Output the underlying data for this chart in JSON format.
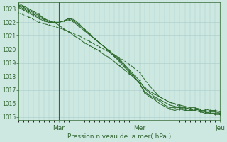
{
  "background_color": "#cce8e0",
  "grid_color": "#aacccc",
  "line_color": "#2d6a2d",
  "ylabel_text": "Pression niveau de la mer( hPa )",
  "ytick_min": 1015,
  "ytick_max": 1023,
  "x_min": 0,
  "x_max": 120,
  "y_min": 1014.8,
  "y_max": 1023.5,
  "day_lines": [
    24,
    72,
    120
  ],
  "xtick_positions": [
    24,
    72,
    120
  ],
  "xtick_labels": [
    "Mar",
    "Mer",
    "Jeu"
  ],
  "series": [
    {
      "x": [
        0,
        3,
        6,
        9,
        12,
        15,
        18,
        21,
        24,
        27,
        30,
        33,
        36,
        39,
        42,
        45,
        48,
        51,
        54,
        57,
        60,
        63,
        66,
        69,
        72,
        75,
        78,
        81,
        84,
        87,
        90,
        93,
        96,
        99,
        102,
        105,
        108,
        111,
        114,
        117,
        120
      ],
      "y": [
        1023.1,
        1022.9,
        1022.7,
        1022.5,
        1022.3,
        1022.1,
        1022.0,
        1022.0,
        1021.8,
        1021.5,
        1021.3,
        1021.0,
        1020.8,
        1020.5,
        1020.3,
        1020.1,
        1019.9,
        1019.6,
        1019.4,
        1019.1,
        1018.8,
        1018.5,
        1018.2,
        1017.9,
        1017.6,
        1017.2,
        1016.9,
        1016.7,
        1016.5,
        1016.3,
        1016.1,
        1016.0,
        1015.9,
        1015.8,
        1015.7,
        1015.7,
        1015.6,
        1015.6,
        1015.5,
        1015.5,
        1015.4
      ],
      "style": "-",
      "marker": "+"
    },
    {
      "x": [
        0,
        3,
        6,
        9,
        12,
        15,
        18,
        21,
        24,
        27,
        30,
        33,
        36,
        39,
        42,
        45,
        48,
        51,
        54,
        57,
        60,
        63,
        66,
        69,
        72,
        75,
        78,
        81,
        84,
        87,
        90,
        93,
        96,
        99,
        102,
        105,
        108,
        111,
        114,
        117,
        120
      ],
      "y": [
        1023.2,
        1023.0,
        1022.8,
        1022.6,
        1022.4,
        1022.2,
        1022.0,
        1022.0,
        1022.0,
        1022.1,
        1022.2,
        1022.0,
        1021.7,
        1021.4,
        1021.1,
        1020.8,
        1020.5,
        1020.2,
        1019.9,
        1019.6,
        1019.3,
        1018.9,
        1018.5,
        1018.1,
        1017.7,
        1017.1,
        1016.8,
        1016.5,
        1016.3,
        1016.1,
        1015.9,
        1015.8,
        1015.7,
        1015.7,
        1015.6,
        1015.6,
        1015.5,
        1015.5,
        1015.4,
        1015.4,
        1015.3
      ],
      "style": "-",
      "marker": "+"
    },
    {
      "x": [
        0,
        3,
        6,
        9,
        12,
        15,
        18,
        21,
        24,
        27,
        30,
        33,
        36,
        39,
        42,
        45,
        48,
        51,
        54,
        57,
        60,
        63,
        66,
        69,
        72,
        75,
        78,
        81,
        84,
        87,
        90,
        93,
        96,
        99,
        102,
        105,
        108,
        111,
        114,
        117,
        120
      ],
      "y": [
        1023.3,
        1023.1,
        1022.9,
        1022.7,
        1022.5,
        1022.3,
        1022.1,
        1022.0,
        1022.0,
        1022.1,
        1022.3,
        1022.1,
        1021.8,
        1021.5,
        1021.1,
        1020.8,
        1020.5,
        1020.2,
        1019.8,
        1019.5,
        1019.2,
        1018.8,
        1018.4,
        1018.0,
        1017.5,
        1016.9,
        1016.6,
        1016.4,
        1016.2,
        1015.9,
        1015.7,
        1015.7,
        1015.7,
        1015.6,
        1015.6,
        1015.6,
        1015.5,
        1015.4,
        1015.3,
        1015.3,
        1015.3
      ],
      "style": "-",
      "marker": "+"
    },
    {
      "x": [
        0,
        3,
        6,
        9,
        12,
        15,
        18,
        21,
        24,
        27,
        30,
        33,
        36,
        39,
        42,
        45,
        48,
        51,
        54,
        57,
        60,
        63,
        66,
        69,
        72,
        75,
        78,
        81,
        84,
        87,
        90,
        93,
        96,
        99,
        102,
        105,
        108,
        111,
        114,
        117,
        120
      ],
      "y": [
        1023.4,
        1023.2,
        1023.0,
        1022.8,
        1022.6,
        1022.3,
        1022.1,
        1022.0,
        1022.0,
        1022.1,
        1022.3,
        1022.2,
        1021.9,
        1021.5,
        1021.2,
        1020.8,
        1020.5,
        1020.2,
        1019.8,
        1019.5,
        1019.1,
        1018.7,
        1018.3,
        1017.9,
        1017.5,
        1016.8,
        1016.5,
        1016.3,
        1016.0,
        1015.8,
        1015.6,
        1015.5,
        1015.6,
        1015.5,
        1015.5,
        1015.5,
        1015.4,
        1015.3,
        1015.3,
        1015.2,
        1015.2
      ],
      "style": "-",
      "marker": "+"
    },
    {
      "x": [
        0,
        6,
        12,
        18,
        24,
        30,
        36,
        42,
        48,
        54,
        60,
        66,
        72,
        78,
        84,
        90,
        96,
        102,
        108,
        114,
        120
      ],
      "y": [
        1022.7,
        1022.4,
        1022.0,
        1021.8,
        1021.6,
        1021.3,
        1021.0,
        1020.6,
        1020.2,
        1019.8,
        1019.4,
        1018.9,
        1018.3,
        1017.3,
        1016.5,
        1016.1,
        1015.8,
        1015.6,
        1015.4,
        1015.3,
        1015.2
      ],
      "style": "--",
      "marker": "+"
    }
  ]
}
